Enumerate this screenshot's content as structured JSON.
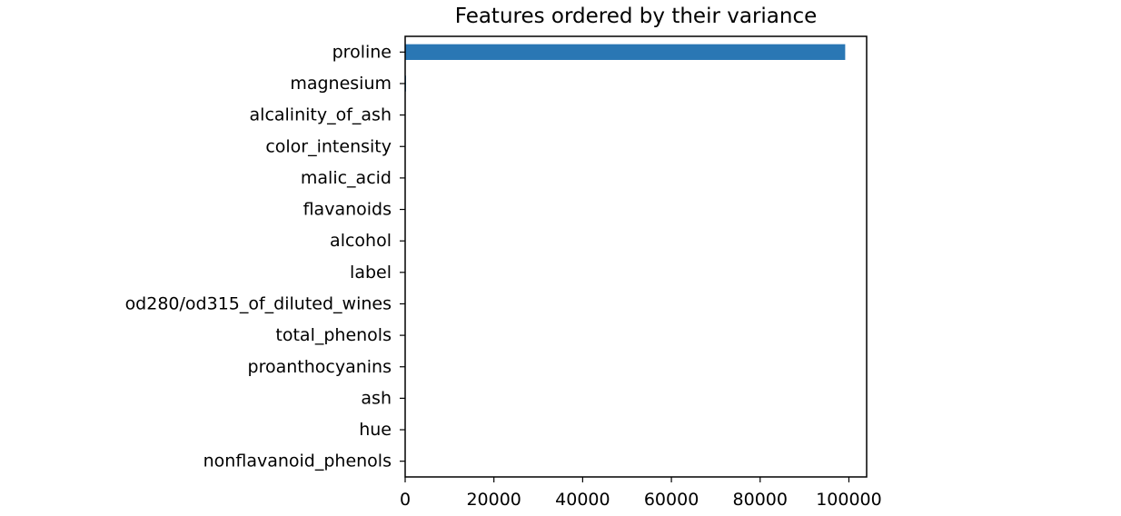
{
  "chart_data": {
    "type": "bar",
    "orientation": "horizontal",
    "title": "Features ordered by their variance",
    "xlabel": "",
    "ylabel": "",
    "categories": [
      "proline",
      "magnesium",
      "alcalinity_of_ash",
      "color_intensity",
      "malic_acid",
      "flavanoids",
      "alcohol",
      "label",
      "od280/od315_of_diluted_wines",
      "total_phenols",
      "proanthocyanins",
      "ash",
      "hue",
      "nonflavanoid_phenols"
    ],
    "values": [
      99167,
      203.99,
      11.15,
      5.37,
      1.25,
      1.0,
      0.66,
      0.6,
      0.5,
      0.39,
      0.33,
      0.08,
      0.05,
      0.02
    ],
    "xlim": [
      0,
      104000
    ],
    "xticks": [
      0,
      20000,
      40000,
      60000,
      80000,
      100000
    ],
    "xtick_labels": [
      "0",
      "20000",
      "40000",
      "60000",
      "80000",
      "100000"
    ],
    "grid": false,
    "color": "#2a77b4"
  }
}
